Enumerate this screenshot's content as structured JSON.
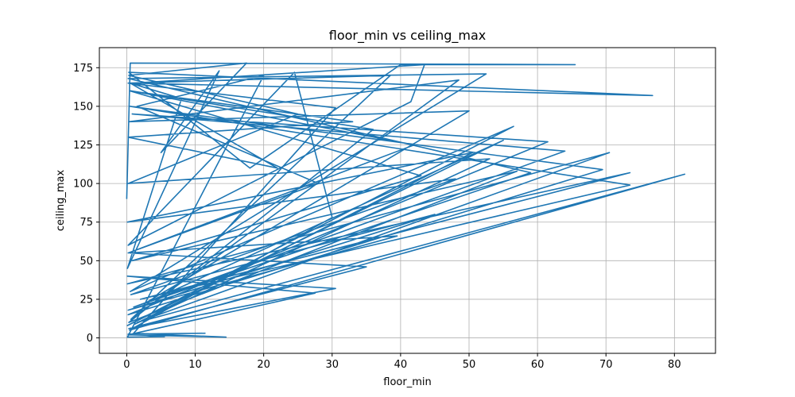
{
  "chart_data": {
    "type": "line",
    "title": "floor_min vs ceiling_max",
    "xlabel": "floor_min",
    "ylabel": "ceiling_max",
    "xlim": [
      -4,
      86
    ],
    "ylim": [
      -10,
      188
    ],
    "xticks": [
      0,
      10,
      20,
      30,
      40,
      50,
      60,
      70,
      80
    ],
    "yticks": [
      0,
      25,
      50,
      75,
      100,
      125,
      150,
      175
    ],
    "grid": true,
    "color": "#1f77b4",
    "series": [
      {
        "values": [
          [
            0.0,
            90.0
          ],
          [
            0.5,
            178.0
          ],
          [
            65.5,
            177.0
          ],
          [
            40.0,
            177.0
          ],
          [
            18.0,
            110.0
          ],
          [
            0.3,
            172.0
          ],
          [
            76.8,
            157.0
          ],
          [
            1.0,
            165.0
          ],
          [
            43.5,
            177.0
          ],
          [
            41.5,
            153.0
          ],
          [
            0.2,
            60.0
          ],
          [
            24.5,
            172.0
          ],
          [
            30.0,
            78.0
          ],
          [
            0.4,
            5.0
          ],
          [
            81.5,
            106.0
          ],
          [
            1.5,
            10.0
          ],
          [
            70.5,
            120.0
          ],
          [
            0.1,
            35.0
          ],
          [
            73.5,
            107.0
          ],
          [
            2.0,
            25.0
          ],
          [
            73.5,
            99.0
          ],
          [
            0.5,
            150.0
          ],
          [
            69.5,
            109.0
          ],
          [
            0.2,
            15.0
          ],
          [
            61.5,
            127.0
          ],
          [
            0.8,
            145.0
          ],
          [
            64.0,
            121.0
          ],
          [
            1.0,
            20.0
          ],
          [
            59.0,
            107.0
          ],
          [
            0.2,
            168.0
          ],
          [
            52.5,
            171.0
          ],
          [
            0.5,
            30.0
          ],
          [
            56.5,
            137.0
          ],
          [
            0.1,
            8.0
          ],
          [
            55.0,
            128.0
          ],
          [
            2.5,
            22.0
          ],
          [
            50.0,
            147.0
          ],
          [
            0.3,
            140.0
          ],
          [
            48.5,
            167.0
          ],
          [
            0.6,
            12.0
          ],
          [
            38.5,
            170.0
          ],
          [
            0.2,
            165.0
          ],
          [
            30.5,
            149.0
          ],
          [
            1.0,
            3.0
          ],
          [
            14.5,
            0.5
          ],
          [
            0.2,
            2.0
          ],
          [
            27.5,
            29.0
          ],
          [
            0.1,
            40.0
          ],
          [
            30.5,
            32.0
          ],
          [
            0.3,
            6.0
          ],
          [
            35.0,
            46.0
          ],
          [
            0.4,
            55.0
          ],
          [
            39.5,
            66.0
          ],
          [
            0.2,
            18.0
          ],
          [
            45.0,
            80.0
          ],
          [
            0.6,
            28.0
          ],
          [
            48.0,
            103.0
          ],
          [
            0.1,
            75.0
          ],
          [
            50.5,
            120.0
          ],
          [
            1.2,
            9.0
          ],
          [
            53.0,
            116.0
          ],
          [
            0.2,
            100.0
          ],
          [
            25.0,
            145.0
          ],
          [
            0.3,
            170.0
          ],
          [
            17.5,
            178.0
          ],
          [
            5.0,
            120.0
          ],
          [
            13.5,
            173.0
          ],
          [
            0.1,
            45.0
          ],
          [
            8.0,
            155.0
          ],
          [
            0.5,
            165.0
          ],
          [
            22.0,
            110.0
          ],
          [
            0.2,
            130.0
          ],
          [
            33.0,
            140.0
          ],
          [
            0.4,
            160.0
          ],
          [
            43.0,
            105.0
          ],
          [
            0.8,
            50.0
          ],
          [
            57.0,
            108.0
          ],
          [
            0.3,
            10.0
          ],
          [
            36.0,
            135.0
          ],
          [
            0.6,
            160.0
          ],
          [
            42.0,
            125.0
          ],
          [
            0.2,
            55.0
          ],
          [
            28.0,
            100.0
          ],
          [
            1.5,
            150.0
          ],
          [
            20.0,
            170.0
          ],
          [
            0.1,
            0.5
          ],
          [
            5.5,
            0.8
          ],
          [
            0.2,
            2.5
          ],
          [
            11.5,
            3.0
          ]
        ]
      }
    ]
  }
}
